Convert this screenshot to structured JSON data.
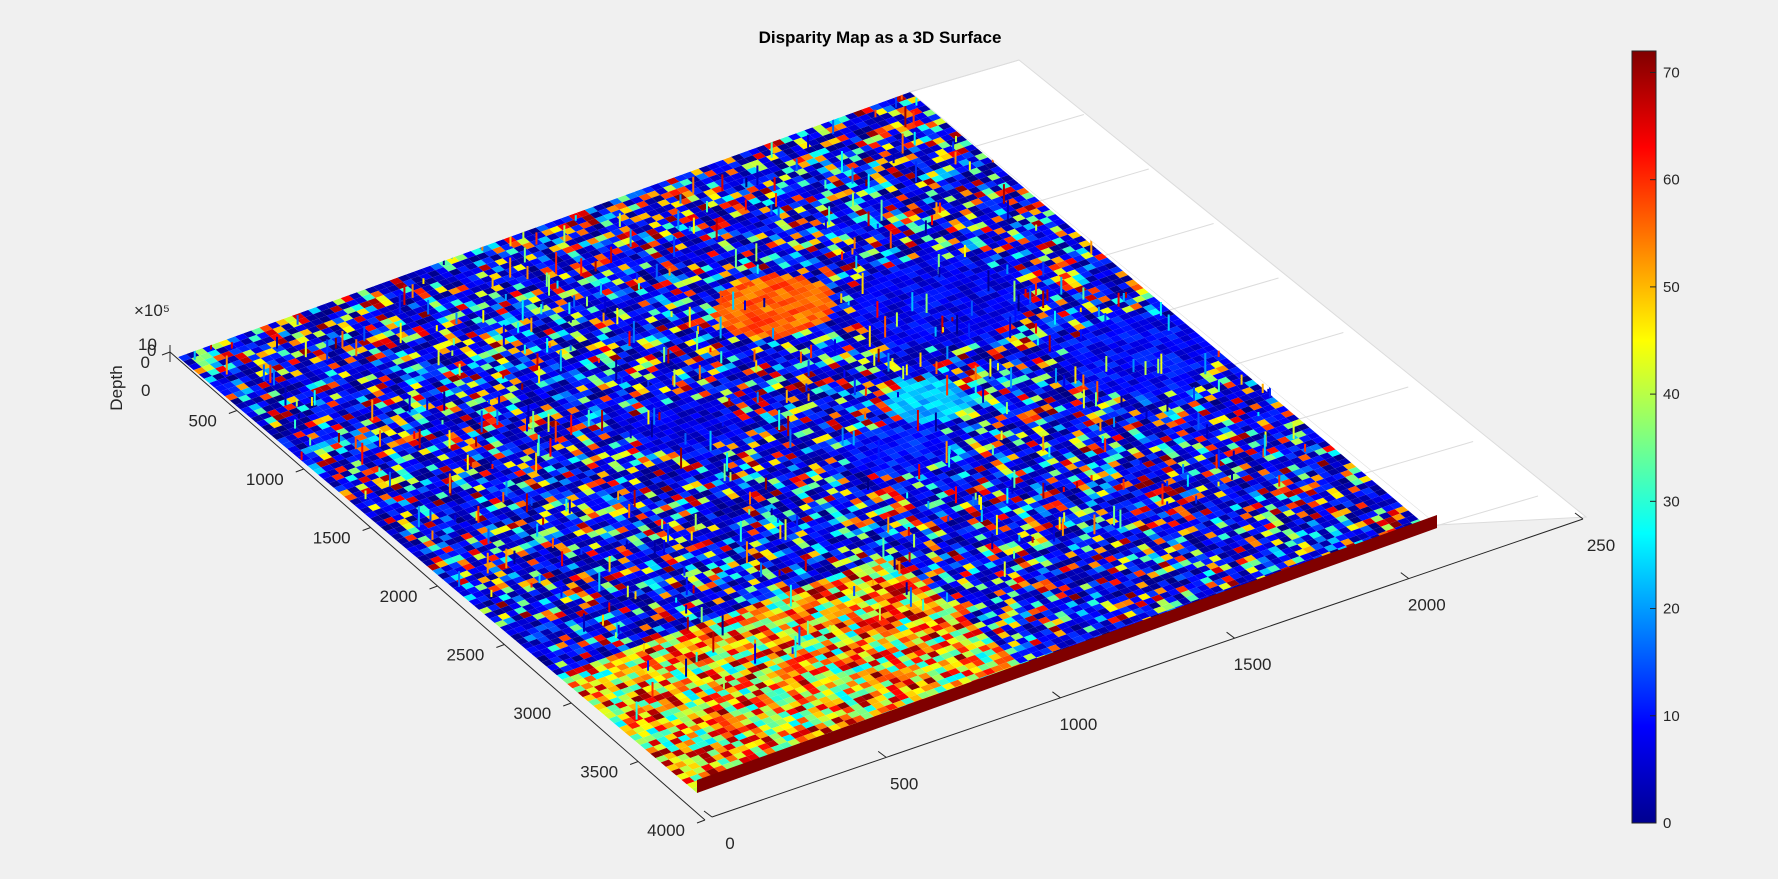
{
  "chart_data": {
    "type": "heatmap",
    "subtype": "3d-surface",
    "title": "Disparity Map as a 3D Surface",
    "xlabel": "",
    "ylabel": "",
    "zlabel": "Depth",
    "z_exponent_label": "×10⁵",
    "x_ticks": [
      "0",
      "500",
      "1000",
      "1500",
      "2000",
      "250"
    ],
    "y_ticks": [
      "0",
      "500",
      "1000",
      "1500",
      "2000",
      "2500",
      "3000",
      "3500",
      "4000"
    ],
    "z_ticks": [
      "10",
      "0"
    ],
    "xlim": [
      0,
      2500
    ],
    "ylim": [
      0,
      4000
    ],
    "colorbar": {
      "colormap": "jet",
      "ticks": [
        "0",
        "10",
        "20",
        "30",
        "40",
        "50",
        "60",
        "70"
      ],
      "tick_values": [
        0,
        10,
        20,
        30,
        40,
        50,
        60,
        70
      ],
      "range": [
        0,
        72
      ]
    },
    "grid": true,
    "legend": "none"
  },
  "colors": {
    "figure_background": "#f0f0f0",
    "axes_background": "#ffffff",
    "base_edge": "#800000"
  }
}
